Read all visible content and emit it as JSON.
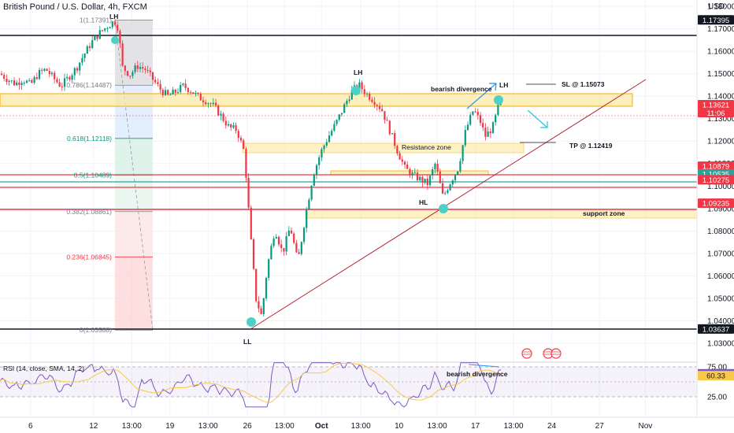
{
  "symbol": "British Pound / U.S. Dollar, 4h, FXCM",
  "currency": "USD",
  "colors": {
    "up": "#089981",
    "down": "#f23645",
    "trend": "#b22833",
    "zone": "#fbe7a1",
    "zone_border": "#f4b000",
    "teal": "#26a69a",
    "accent": "#2962ff",
    "marker": "#4dd0c6"
  },
  "price_axis": {
    "min": 1.03,
    "max": 1.18,
    "ticks": [
      "1.18000",
      "1.17000",
      "1.16000",
      "1.15000",
      "1.14000",
      "1.13000",
      "1.12000",
      "1.11000",
      "1.10000",
      "1.09000",
      "1.08000",
      "1.07000",
      "1.06000",
      "1.05000",
      "1.04000",
      "1.03000"
    ]
  },
  "time_axis": {
    "labels": [
      {
        "t": 0.08,
        "label": "6"
      },
      {
        "t": 0.245,
        "label": "12"
      },
      {
        "t": 0.345,
        "label": "13:00"
      },
      {
        "t": 0.445,
        "label": "19"
      },
      {
        "t": 0.545,
        "label": "13:00"
      },
      {
        "t": 0.648,
        "label": "26"
      },
      {
        "t": 0.745,
        "label": "13:00"
      },
      {
        "t": 0.842,
        "label": "Oct"
      },
      {
        "t": 0.945,
        "label": "13:00"
      },
      {
        "t": 1.045,
        "label": "10"
      },
      {
        "t": 1.145,
        "label": "13:00"
      },
      {
        "t": 1.245,
        "label": "17"
      },
      {
        "t": 1.345,
        "label": "13:00"
      },
      {
        "t": 1.445,
        "label": "24"
      },
      {
        "t": 1.57,
        "label": "27"
      },
      {
        "t": 1.69,
        "label": "Nov"
      }
    ]
  },
  "price_tags": [
    {
      "value": 1.17395,
      "label": "1.17395",
      "bg": "#131722",
      "fg": "#ffffff"
    },
    {
      "value": 1.13621,
      "label": "1.13621",
      "sub": "11:06",
      "bg": "#f23645",
      "fg": "#ffffff"
    },
    {
      "value": 1.10879,
      "label": "1.10879",
      "bg": "#f23645",
      "fg": "#ffffff"
    },
    {
      "value": 1.10535,
      "label": "1.10535",
      "bg": "#26a69a",
      "fg": "#ffffff"
    },
    {
      "value": 1.10275,
      "label": "1.10275",
      "bg": "#f23645",
      "fg": "#ffffff"
    },
    {
      "value": 1.09235,
      "label": "1.09235",
      "bg": "#f23645",
      "fg": "#ffffff"
    },
    {
      "value": 1.03637,
      "label": "1.03637",
      "bg": "#131722",
      "fg": "#ffffff"
    }
  ],
  "fib_levels": [
    {
      "ratio": 1,
      "value": 1.17391,
      "label": "1(1.17391)",
      "color": "#787b86"
    },
    {
      "ratio": 0.786,
      "value": 1.14487,
      "label": "0.786(1.14487)",
      "color": "#787b86"
    },
    {
      "ratio": 0.618,
      "value": 1.12118,
      "label": "0.618(1.12118)",
      "color": "#089981"
    },
    {
      "ratio": 0.5,
      "value": 1.10489,
      "label": "0.5(1.10489)",
      "color": "#089981"
    },
    {
      "ratio": 0.382,
      "value": 1.08861,
      "label": "0.382(1.08861)",
      "color": "#787b86"
    },
    {
      "ratio": 0.236,
      "value": 1.06845,
      "label": "0.236(1.06845)",
      "color": "#f23645"
    },
    {
      "ratio": 0,
      "value": 1.03588,
      "label": "0(1.03588)",
      "color": "#787b86"
    }
  ],
  "annotations": {
    "lh1": "LH",
    "lh2": "LH",
    "lh3": "LH",
    "ll": "LL",
    "hl": "HL",
    "bearish_divergence": "bearish divergence",
    "sl": "SL @ 1.15073",
    "tp": "TP @ 1.12419",
    "resistance_zone": "Resistance zone",
    "support_zone": "support zone",
    "rsi_divergence": "bearish divergence"
  },
  "rsi": {
    "title": "RSI (14, close, SMA, 14, 2)",
    "ticks": [
      "75.00",
      "25.00"
    ],
    "value_tags": [
      {
        "value": 63.43,
        "label": "63.43",
        "bg": "#7e57c2",
        "fg": "#ffffff"
      },
      {
        "value": 60.33,
        "label": "60.33",
        "bg": "#f7c948",
        "fg": "#131722"
      }
    ],
    "upper": 70,
    "lower": 30,
    "mid": 50
  },
  "chart_data": {
    "type": "candlestick",
    "title": "British Pound / U.S. Dollar, 4h, FXCM",
    "ylim": [
      1.03,
      1.18
    ],
    "close_path": [
      [
        0.0,
        1.15
      ],
      [
        0.02,
        1.1475
      ],
      [
        0.04,
        1.1455
      ],
      [
        0.06,
        1.1475
      ],
      [
        0.08,
        1.145
      ],
      [
        0.1,
        1.15
      ],
      [
        0.12,
        1.152
      ],
      [
        0.14,
        1.148
      ],
      [
        0.16,
        1.1445
      ],
      [
        0.18,
        1.1485
      ],
      [
        0.2,
        1.1525
      ],
      [
        0.22,
        1.1585
      ],
      [
        0.24,
        1.164
      ],
      [
        0.26,
        1.168
      ],
      [
        0.28,
        1.171
      ],
      [
        0.3,
        1.1735
      ],
      [
        0.31,
        1.17
      ],
      [
        0.32,
        1.153
      ],
      [
        0.34,
        1.1495
      ],
      [
        0.36,
        1.1535
      ],
      [
        0.38,
        1.152
      ],
      [
        0.4,
        1.1475
      ],
      [
        0.42,
        1.143
      ],
      [
        0.44,
        1.14
      ],
      [
        0.46,
        1.142
      ],
      [
        0.48,
        1.1445
      ],
      [
        0.5,
        1.1425
      ],
      [
        0.52,
        1.1395
      ],
      [
        0.54,
        1.138
      ],
      [
        0.56,
        1.1355
      ],
      [
        0.58,
        1.131
      ],
      [
        0.6,
        1.126
      ],
      [
        0.62,
        1.125
      ],
      [
        0.64,
        1.115
      ],
      [
        0.655,
        1.08
      ],
      [
        0.67,
        1.05
      ],
      [
        0.685,
        1.042
      ],
      [
        0.7,
        1.064
      ],
      [
        0.72,
        1.081
      ],
      [
        0.74,
        1.07
      ],
      [
        0.76,
        1.082
      ],
      [
        0.78,
        1.066
      ],
      [
        0.8,
        1.087
      ],
      [
        0.82,
        1.105
      ],
      [
        0.84,
        1.115
      ],
      [
        0.86,
        1.122
      ],
      [
        0.88,
        1.128
      ],
      [
        0.9,
        1.135
      ],
      [
        0.92,
        1.142
      ],
      [
        0.94,
        1.145
      ],
      [
        0.96,
        1.141
      ],
      [
        0.98,
        1.138
      ],
      [
        1.0,
        1.134
      ],
      [
        1.02,
        1.125
      ],
      [
        1.04,
        1.116
      ],
      [
        1.06,
        1.108
      ],
      [
        1.08,
        1.105
      ],
      [
        1.1,
        1.103
      ],
      [
        1.12,
        1.101
      ],
      [
        1.14,
        1.11
      ],
      [
        1.16,
        1.095
      ],
      [
        1.18,
        1.102
      ],
      [
        1.2,
        1.108
      ],
      [
        1.22,
        1.125
      ],
      [
        1.24,
        1.134
      ],
      [
        1.26,
        1.128
      ],
      [
        1.27,
        1.122
      ],
      [
        1.29,
        1.126
      ],
      [
        1.31,
        1.138
      ],
      [
        1.32,
        1.1362
      ]
    ]
  }
}
